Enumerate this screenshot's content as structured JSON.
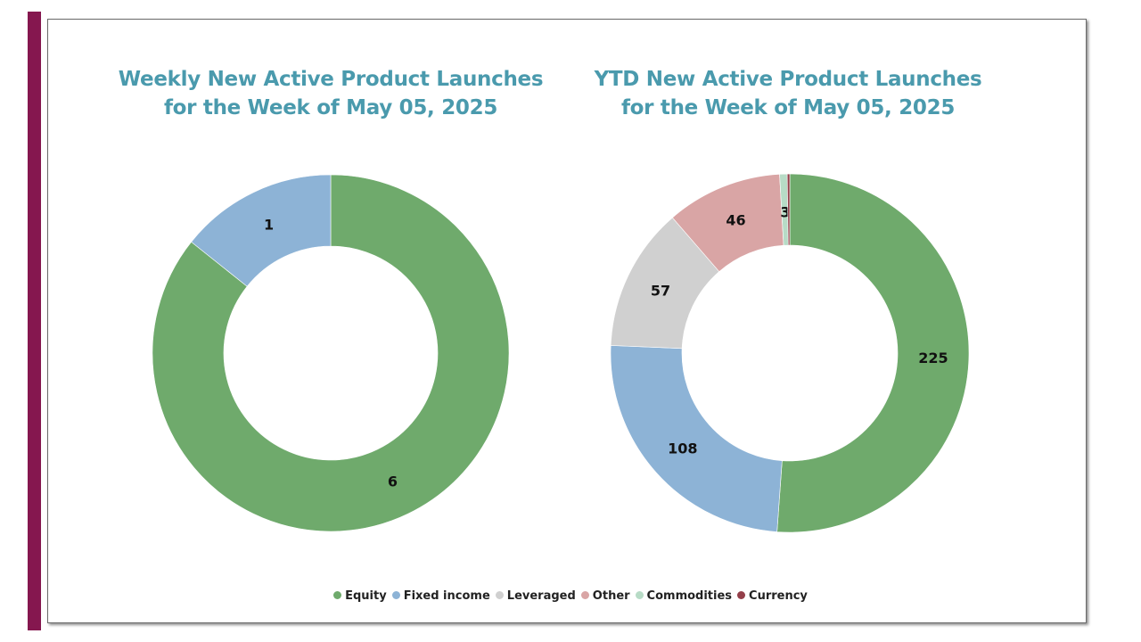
{
  "colors": {
    "sidebar": "#85174f",
    "title": "#4a9aad",
    "Equity": "#6faa6c",
    "Fixed income": "#8db3d6",
    "Leveraged": "#d0d0d0",
    "Other": "#d9a5a5",
    "Commodities": "#b7dbc6",
    "Currency": "#943f4a"
  },
  "legend": [
    "Equity",
    "Fixed income",
    "Leveraged",
    "Other",
    "Commodities",
    "Currency"
  ],
  "chart_data": [
    {
      "type": "pie",
      "subtype": "donut",
      "title": "Weekly New Active Product Launches for the Week of May 05, 2025",
      "title_lines": [
        "Weekly New Active Product Launches",
        "for the Week of May 05, 2025"
      ],
      "categories": [
        "Equity",
        "Fixed income"
      ],
      "values": [
        6,
        1
      ],
      "data_labels": [
        "6",
        "1"
      ],
      "legend_position": "bottom"
    },
    {
      "type": "pie",
      "subtype": "donut",
      "title": "YTD New Active Product Launches for the Week of May 05, 2025",
      "title_lines": [
        "YTD New Active Product Launches",
        "for the Week of May 05, 2025"
      ],
      "categories": [
        "Equity",
        "Fixed income",
        "Leveraged",
        "Other",
        "Commodities",
        "Currency"
      ],
      "values": [
        225,
        108,
        57,
        46,
        3,
        1
      ],
      "data_labels": [
        "225",
        "108",
        "57",
        "46",
        "3",
        ""
      ],
      "legend_position": "bottom"
    }
  ]
}
